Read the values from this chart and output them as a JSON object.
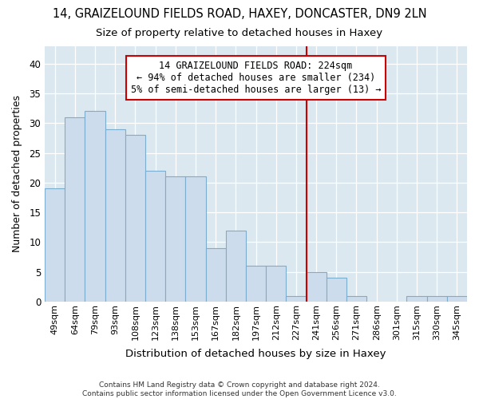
{
  "title": "14, GRAIZELOUND FIELDS ROAD, HAXEY, DONCASTER, DN9 2LN",
  "subtitle": "Size of property relative to detached houses in Haxey",
  "xlabel": "Distribution of detached houses by size in Haxey",
  "ylabel": "Number of detached properties",
  "categories": [
    "49sqm",
    "64sqm",
    "79sqm",
    "93sqm",
    "108sqm",
    "123sqm",
    "138sqm",
    "153sqm",
    "167sqm",
    "182sqm",
    "197sqm",
    "212sqm",
    "227sqm",
    "241sqm",
    "256sqm",
    "271sqm",
    "286sqm",
    "301sqm",
    "315sqm",
    "330sqm",
    "345sqm"
  ],
  "values": [
    19,
    31,
    32,
    29,
    28,
    22,
    21,
    21,
    9,
    12,
    6,
    6,
    1,
    5,
    4,
    1,
    0,
    0,
    1,
    1,
    1
  ],
  "bar_color": "#cddcec",
  "bar_edge_color": "#7aadce",
  "annotation_text_lines": [
    "14 GRAIZELOUND FIELDS ROAD: 224sqm",
    "← 94% of detached houses are smaller (234)",
    "5% of semi-detached houses are larger (13) →"
  ],
  "annotation_box_color": "#ffffff",
  "annotation_box_edge": "#cc0000",
  "vline_color": "#cc0000",
  "vline_x_index": 12.5,
  "ylim": [
    0,
    43
  ],
  "yticks": [
    0,
    5,
    10,
    15,
    20,
    25,
    30,
    35,
    40
  ],
  "bg_color": "#dce8f0",
  "fig_bg_color": "#ffffff",
  "footer": "Contains HM Land Registry data © Crown copyright and database right 2024.\nContains public sector information licensed under the Open Government Licence v3.0.",
  "title_fontsize": 10.5,
  "subtitle_fontsize": 9.5,
  "xlabel_fontsize": 9.5,
  "ylabel_fontsize": 9,
  "annot_fontsize": 8.5
}
